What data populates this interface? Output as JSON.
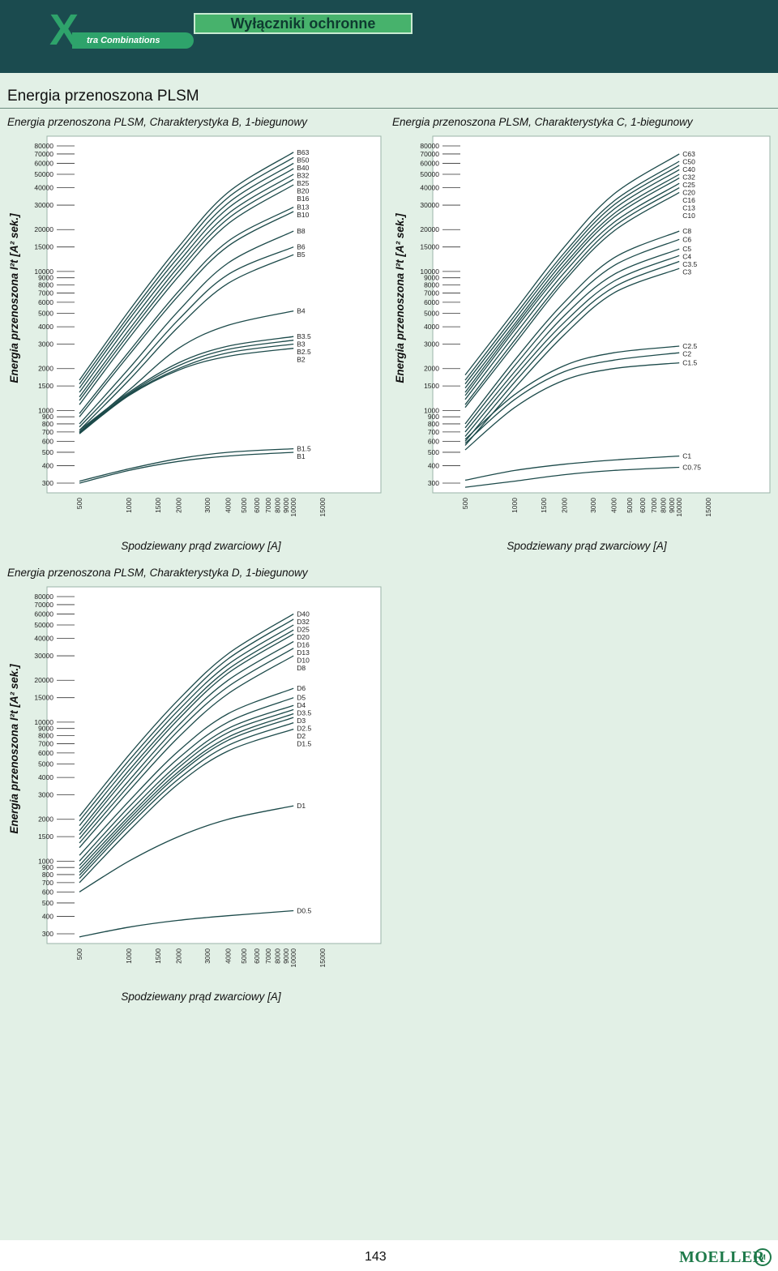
{
  "header": {
    "logo_letter": "X",
    "logo_text": "tra Combinations",
    "title": "Wyłączniki ochronne"
  },
  "section_title": "Energia przenoszona PLSM",
  "page_number": "143",
  "brand": "MOELLER",
  "brand_mark": "M",
  "colors": {
    "header_bg": "#1b4b4f",
    "content_bg": "#e2f0e6",
    "line": "#1c4a4a",
    "accent_green": "#2ea36b"
  },
  "chart_data": [
    {
      "type": "line",
      "title": "Energia przenoszona PLSM, Charakterystyka B, 1-biegunowy",
      "xlabel": "Spodziewany prąd zwarciowy [A]",
      "ylabel": "Energia przenoszona I²t [A² sek.]",
      "x_scale": "log",
      "y_scale": "log",
      "xlim": [
        500,
        15000
      ],
      "ylim": [
        300,
        80000
      ],
      "x_ticks": [
        "500",
        "1000",
        "1500",
        "2000",
        "3000",
        "4000",
        "5000",
        "6000",
        "7000",
        "8000",
        "9000",
        "10000",
        "15000"
      ],
      "y_ticks": [
        "300",
        "400",
        "500",
        "600",
        "700",
        "800",
        "900",
        "1000",
        "1500",
        "2000",
        "3000",
        "4000",
        "5000",
        "6000",
        "7000",
        "8000",
        "9000",
        "10000",
        "15000",
        "20000",
        "30000",
        "40000",
        "50000",
        "60000",
        "70000",
        "80000"
      ],
      "series": [
        {
          "name": "B63",
          "x": [
            500,
            1000,
            2000,
            4000,
            10000
          ],
          "y": [
            1650,
            5200,
            15000,
            37000,
            72000
          ]
        },
        {
          "name": "B50",
          "x": [
            500,
            1000,
            2000,
            4000,
            10000
          ],
          "y": [
            1550,
            4800,
            13800,
            34000,
            66000
          ]
        },
        {
          "name": "B40",
          "x": [
            500,
            1000,
            2000,
            4000,
            10000
          ],
          "y": [
            1450,
            4500,
            12700,
            31000,
            60000
          ]
        },
        {
          "name": "B32",
          "x": [
            500,
            1000,
            2000,
            4000,
            10000
          ],
          "y": [
            1350,
            4150,
            11700,
            28500,
            55000
          ]
        },
        {
          "name": "B25",
          "x": [
            500,
            1000,
            2000,
            4000,
            10000
          ],
          "y": [
            1250,
            3800,
            10800,
            26000,
            50000
          ]
        },
        {
          "name": "B20",
          "x": [
            500,
            1000,
            2000,
            4000,
            10000
          ],
          "y": [
            1180,
            3550,
            10000,
            24000,
            46000
          ]
        },
        {
          "name": "B16",
          "x": [
            500,
            1000,
            2000,
            4000,
            10000
          ],
          "y": [
            1100,
            3300,
            9200,
            22000,
            42000
          ]
        },
        {
          "name": "B13",
          "x": [
            500,
            1000,
            2000,
            4000,
            10000
          ],
          "y": [
            950,
            2650,
            7200,
            16500,
            29000
          ]
        },
        {
          "name": "B10",
          "x": [
            500,
            1000,
            2000,
            4000,
            10000
          ],
          "y": [
            900,
            2500,
            6700,
            15200,
            27000
          ]
        },
        {
          "name": "B8",
          "x": [
            500,
            1000,
            2000,
            4000,
            10000
          ],
          "y": [
            800,
            2000,
            5200,
            11500,
            19500
          ]
        },
        {
          "name": "B6",
          "x": [
            500,
            1000,
            2000,
            4000,
            10000
          ],
          "y": [
            760,
            1800,
            4500,
            9500,
            15000
          ]
        },
        {
          "name": "B5",
          "x": [
            500,
            1000,
            2000,
            4000,
            10000
          ],
          "y": [
            720,
            1650,
            4000,
            8200,
            13200
          ]
        },
        {
          "name": "B4",
          "x": [
            500,
            1000,
            2000,
            4000,
            10000
          ],
          "y": [
            700,
            1400,
            2800,
            4100,
            5200
          ]
        },
        {
          "name": "B3.5",
          "x": [
            500,
            1000,
            2000,
            4000,
            10000
          ],
          "y": [
            720,
            1350,
            2200,
            2900,
            3400
          ]
        },
        {
          "name": "B3",
          "x": [
            500,
            1000,
            2000,
            4000,
            10000
          ],
          "y": [
            700,
            1320,
            2100,
            2750,
            3200
          ]
        },
        {
          "name": "B2.5",
          "x": [
            500,
            1000,
            2000,
            4000,
            10000
          ],
          "y": [
            690,
            1300,
            2000,
            2600,
            3000
          ]
        },
        {
          "name": "B2",
          "x": [
            500,
            1000,
            2000,
            4000,
            10000
          ],
          "y": [
            680,
            1280,
            1950,
            2450,
            2800
          ]
        },
        {
          "name": "B1.5",
          "x": [
            500,
            1000,
            2000,
            4000,
            10000
          ],
          "y": [
            310,
            380,
            450,
            500,
            530
          ]
        },
        {
          "name": "B1",
          "x": [
            500,
            1000,
            2000,
            4000,
            10000
          ],
          "y": [
            300,
            370,
            430,
            470,
            500
          ]
        }
      ]
    },
    {
      "type": "line",
      "title": "Energia przenoszona PLSM, Charakterystyka C, 1-biegunowy",
      "xlabel": "Spodziewany prąd zwarciowy [A]",
      "ylabel": "Energia przenoszona I²t [A² sek.]",
      "x_scale": "log",
      "y_scale": "log",
      "xlim": [
        500,
        15000
      ],
      "ylim": [
        300,
        80000
      ],
      "x_ticks": [
        "500",
        "1000",
        "1500",
        "2000",
        "3000",
        "4000",
        "5000",
        "6000",
        "7000",
        "8000",
        "9000",
        "10000",
        "15000"
      ],
      "y_ticks": [
        "300",
        "400",
        "500",
        "600",
        "700",
        "800",
        "900",
        "1000",
        "1500",
        "2000",
        "3000",
        "4000",
        "5000",
        "6000",
        "7000",
        "8000",
        "9000",
        "10000",
        "15000",
        "20000",
        "30000",
        "40000",
        "50000",
        "60000",
        "70000",
        "80000"
      ],
      "series": [
        {
          "name": "C63",
          "x": [
            500,
            1000,
            2000,
            4000,
            10000
          ],
          "y": [
            1800,
            5200,
            15000,
            36000,
            70000
          ]
        },
        {
          "name": "C50",
          "x": [
            500,
            1000,
            2000,
            4000,
            10000
          ],
          "y": [
            1650,
            4800,
            13600,
            32000,
            62000
          ]
        },
        {
          "name": "C40",
          "x": [
            500,
            1000,
            2000,
            4000,
            10000
          ],
          "y": [
            1550,
            4500,
            12800,
            30000,
            58000
          ]
        },
        {
          "name": "C32",
          "x": [
            500,
            1000,
            2000,
            4000,
            10000
          ],
          "y": [
            1450,
            4200,
            12000,
            28000,
            54000
          ]
        },
        {
          "name": "C25",
          "x": [
            500,
            1000,
            2000,
            4000,
            10000
          ],
          "y": [
            1350,
            4000,
            11200,
            26000,
            50000
          ]
        },
        {
          "name": "C20",
          "x": [
            500,
            1000,
            2000,
            4000,
            10000
          ],
          "y": [
            1280,
            3800,
            10600,
            24500,
            47000
          ]
        },
        {
          "name": "C16",
          "x": [
            500,
            1000,
            2000,
            4000,
            10000
          ],
          "y": [
            1200,
            3500,
            9800,
            22500,
            43000
          ]
        },
        {
          "name": "C13",
          "x": [
            500,
            1000,
            2000,
            4000,
            10000
          ],
          "y": [
            1100,
            3200,
            9000,
            21000,
            40000
          ]
        },
        {
          "name": "C10",
          "x": [
            500,
            1000,
            2000,
            4000,
            10000
          ],
          "y": [
            1050,
            3000,
            8500,
            19500,
            37000
          ]
        },
        {
          "name": "C8",
          "x": [
            500,
            1000,
            2000,
            4000,
            10000
          ],
          "y": [
            800,
            2300,
            6000,
            12500,
            19500
          ]
        },
        {
          "name": "C6",
          "x": [
            500,
            1000,
            2000,
            4000,
            10000
          ],
          "y": [
            750,
            2100,
            5400,
            11000,
            17000
          ]
        },
        {
          "name": "C5",
          "x": [
            500,
            1000,
            2000,
            4000,
            10000
          ],
          "y": [
            700,
            1900,
            4800,
            9500,
            14500
          ]
        },
        {
          "name": "C4",
          "x": [
            500,
            1000,
            2000,
            4000,
            10000
          ],
          "y": [
            650,
            1750,
            4300,
            8500,
            13000
          ]
        },
        {
          "name": "C3.5",
          "x": [
            500,
            1000,
            2000,
            4000,
            10000
          ],
          "y": [
            600,
            1600,
            3900,
            7700,
            11800
          ]
        },
        {
          "name": "C3",
          "x": [
            500,
            1000,
            2000,
            4000,
            10000
          ],
          "y": [
            560,
            1450,
            3500,
            7000,
            10500
          ]
        },
        {
          "name": "C2.5",
          "x": [
            500,
            1000,
            2000,
            4000,
            10000
          ],
          "y": [
            620,
            1300,
            2100,
            2600,
            2900
          ]
        },
        {
          "name": "C2",
          "x": [
            500,
            1000,
            2000,
            4000,
            10000
          ],
          "y": [
            580,
            1200,
            1900,
            2300,
            2600
          ]
        },
        {
          "name": "C1.5",
          "x": [
            500,
            1000,
            2000,
            4000,
            10000
          ],
          "y": [
            520,
            1050,
            1650,
            2000,
            2200
          ]
        },
        {
          "name": "C1",
          "x": [
            500,
            1000,
            2000,
            4000,
            10000
          ],
          "y": [
            315,
            370,
            410,
            440,
            470
          ]
        },
        {
          "name": "C0.75",
          "x": [
            500,
            1000,
            2000,
            4000,
            10000
          ],
          "y": [
            280,
            310,
            345,
            370,
            390
          ]
        }
      ]
    },
    {
      "type": "line",
      "title": "Energia przenoszona PLSM, Charakterystyka D, 1-biegunowy",
      "xlabel": "Spodziewany prąd zwarciowy [A]",
      "ylabel": "Energia przenoszona I²t [A² sek.]",
      "x_scale": "log",
      "y_scale": "log",
      "xlim": [
        500,
        15000
      ],
      "ylim": [
        300,
        80000
      ],
      "x_ticks": [
        "500",
        "1000",
        "1500",
        "2000",
        "3000",
        "4000",
        "5000",
        "6000",
        "7000",
        "8000",
        "9000",
        "10000",
        "15000"
      ],
      "y_ticks": [
        "300",
        "400",
        "500",
        "600",
        "700",
        "800",
        "900",
        "1000",
        "1500",
        "2000",
        "3000",
        "4000",
        "5000",
        "6000",
        "7000",
        "8000",
        "9000",
        "10000",
        "15000",
        "20000",
        "30000",
        "40000",
        "50000",
        "60000",
        "70000",
        "80000"
      ],
      "series": [
        {
          "name": "D40",
          "x": [
            500,
            1000,
            2000,
            4000,
            10000
          ],
          "y": [
            2100,
            5800,
            14500,
            31000,
            60000
          ]
        },
        {
          "name": "D32",
          "x": [
            500,
            1000,
            2000,
            4000,
            10000
          ],
          "y": [
            1950,
            5300,
            13200,
            28500,
            55000
          ]
        },
        {
          "name": "D25",
          "x": [
            500,
            1000,
            2000,
            4000,
            10000
          ],
          "y": [
            1800,
            4900,
            12200,
            26000,
            50000
          ]
        },
        {
          "name": "D20",
          "x": [
            500,
            1000,
            2000,
            4000,
            10000
          ],
          "y": [
            1650,
            4500,
            11200,
            24000,
            46000
          ]
        },
        {
          "name": "D16",
          "x": [
            500,
            1000,
            2000,
            4000,
            10000
          ],
          "y": [
            1550,
            4200,
            10500,
            22500,
            43000
          ]
        },
        {
          "name": "D13",
          "x": [
            500,
            1000,
            2000,
            4000,
            10000
          ],
          "y": [
            1450,
            3800,
            9500,
            20000,
            38000
          ]
        },
        {
          "name": "D10",
          "x": [
            500,
            1000,
            2000,
            4000,
            10000
          ],
          "y": [
            1350,
            3500,
            8700,
            18000,
            34000
          ]
        },
        {
          "name": "D8",
          "x": [
            500,
            1000,
            2000,
            4000,
            10000
          ],
          "y": [
            1250,
            3200,
            7800,
            16000,
            30000
          ]
        },
        {
          "name": "D6",
          "x": [
            500,
            1000,
            2000,
            4000,
            10000
          ],
          "y": [
            1100,
            2700,
            6200,
            11500,
            17500
          ]
        },
        {
          "name": "D5",
          "x": [
            500,
            1000,
            2000,
            4000,
            10000
          ],
          "y": [
            1000,
            2450,
            5500,
            10000,
            15000
          ]
        },
        {
          "name": "D4",
          "x": [
            500,
            1000,
            2000,
            4000,
            10000
          ],
          "y": [
            930,
            2250,
            5000,
            9000,
            13200
          ]
        },
        {
          "name": "D3.5",
          "x": [
            500,
            1000,
            2000,
            4000,
            10000
          ],
          "y": [
            880,
            2100,
            4700,
            8400,
            12300
          ]
        },
        {
          "name": "D3",
          "x": [
            500,
            1000,
            2000,
            4000,
            10000
          ],
          "y": [
            830,
            2000,
            4400,
            7800,
            11500
          ]
        },
        {
          "name": "D2.5",
          "x": [
            500,
            1000,
            2000,
            4000,
            10000
          ],
          "y": [
            790,
            1900,
            4200,
            7400,
            10800
          ]
        },
        {
          "name": "D2",
          "x": [
            500,
            1000,
            2000,
            4000,
            10000
          ],
          "y": [
            750,
            1800,
            3900,
            6800,
            9900
          ]
        },
        {
          "name": "D1.5",
          "x": [
            500,
            1000,
            2000,
            4000,
            10000
          ],
          "y": [
            700,
            1650,
            3600,
            6200,
            8900
          ]
        },
        {
          "name": "D1",
          "x": [
            500,
            1000,
            2000,
            4000,
            10000
          ],
          "y": [
            600,
            1000,
            1500,
            2000,
            2500
          ]
        },
        {
          "name": "D0.5",
          "x": [
            500,
            1000,
            2000,
            4000,
            10000
          ],
          "y": [
            285,
            335,
            375,
            405,
            440
          ]
        }
      ]
    }
  ]
}
